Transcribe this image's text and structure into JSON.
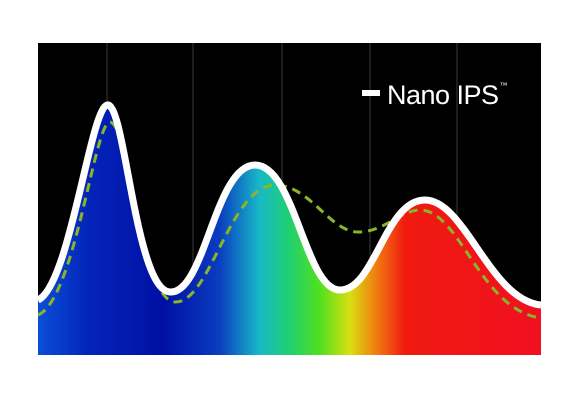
{
  "legend": {
    "label": "Nano IPS",
    "mark": "™"
  }
}
